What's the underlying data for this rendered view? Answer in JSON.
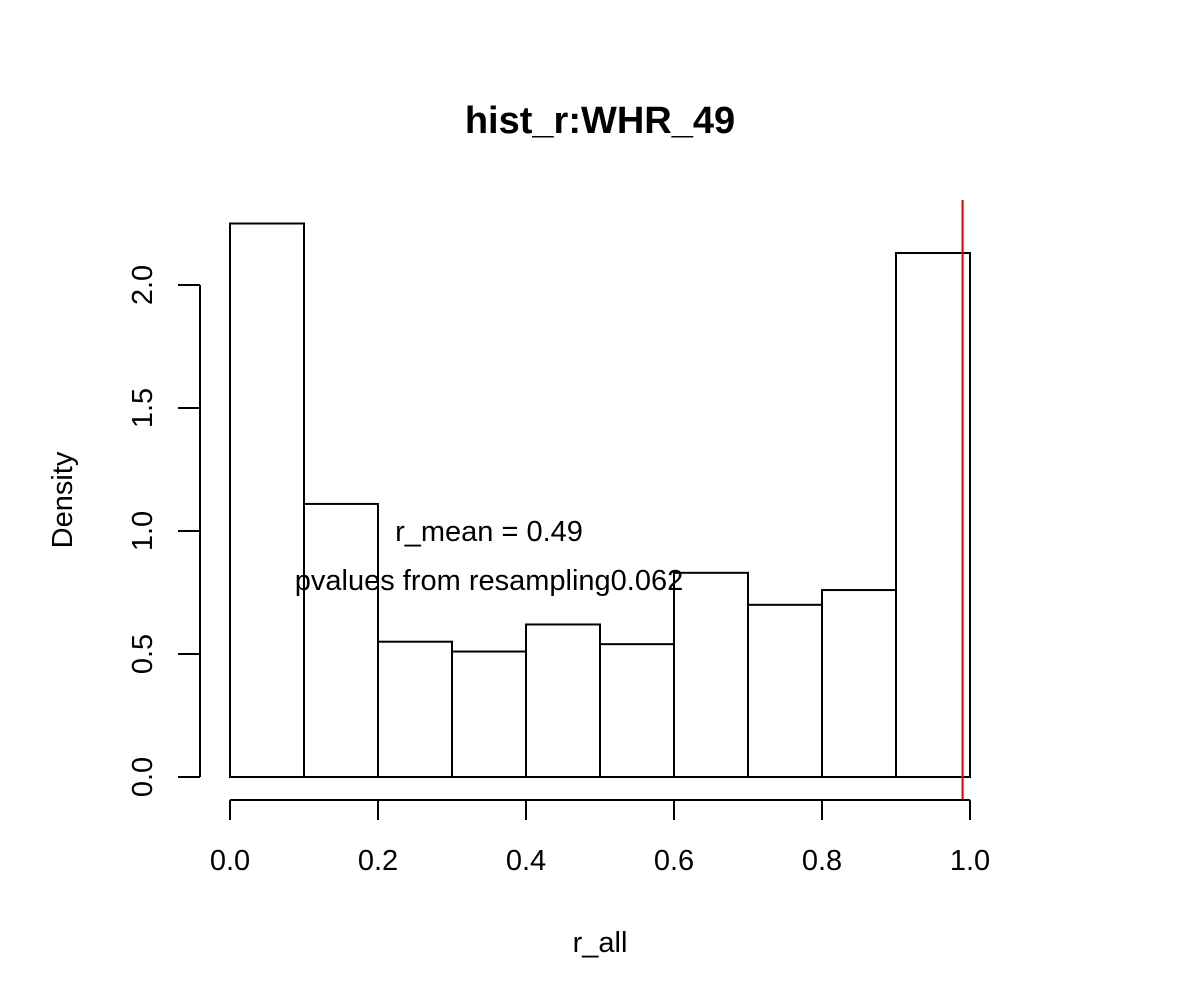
{
  "chart_data": {
    "type": "bar",
    "title": "hist_r:WHR_49",
    "xlabel": "r_all",
    "ylabel": "Density",
    "bin_edges": [
      0.0,
      0.1,
      0.2,
      0.3,
      0.4,
      0.5,
      0.6,
      0.7,
      0.8,
      0.9,
      1.0
    ],
    "values": [
      2.25,
      1.11,
      0.55,
      0.51,
      0.62,
      0.54,
      0.83,
      0.7,
      0.76,
      2.13
    ],
    "xlim": [
      0.0,
      1.0
    ],
    "ylim": [
      0.0,
      2.0
    ],
    "x_ticks": [
      0.0,
      0.2,
      0.4,
      0.6,
      0.8,
      1.0
    ],
    "x_tick_labels": [
      "0.0",
      "0.2",
      "0.4",
      "0.6",
      "0.8",
      "1.0"
    ],
    "y_ticks": [
      0.0,
      0.5,
      1.0,
      1.5,
      2.0
    ],
    "y_tick_labels": [
      "0.0",
      "0.5",
      "1.0",
      "1.5",
      "2.0"
    ],
    "reference_line": {
      "x": 0.99,
      "color": "#dd0000"
    },
    "annotations": [
      {
        "text": "r_mean = 0.49",
        "x": 0.35,
        "y": 1.0
      },
      {
        "text": "pvalues from resampling0.062",
        "x": 0.35,
        "y": 0.8
      }
    ],
    "grid": false,
    "legend": "none"
  }
}
